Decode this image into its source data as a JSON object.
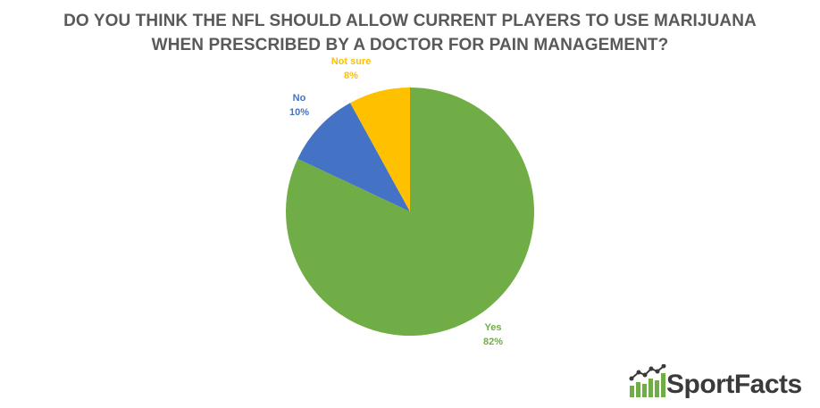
{
  "chart_data": {
    "type": "pie",
    "title_lines": [
      "DO YOU THINK THE NFL SHOULD ALLOW CURRENT PLAYERS TO USE MARIJUANA",
      "WHEN PRESCRIBED BY A DOCTOR FOR PAIN MANAGEMENT?"
    ],
    "slices": [
      {
        "label": "Yes",
        "value": 82,
        "display": "82%",
        "color": "#70AD47"
      },
      {
        "label": "No",
        "value": 10,
        "display": "10%",
        "color": "#4472C4"
      },
      {
        "label": "Not sure",
        "value": 8,
        "display": "8%",
        "color": "#FFC000"
      }
    ],
    "start": "12 o'clock",
    "direction": "clockwise"
  },
  "brand": {
    "name": "SportFacts",
    "logo_icon": "bar-chart-with-trend-line-icon",
    "color": "#3a3a3a",
    "accent": "#70AD47"
  }
}
